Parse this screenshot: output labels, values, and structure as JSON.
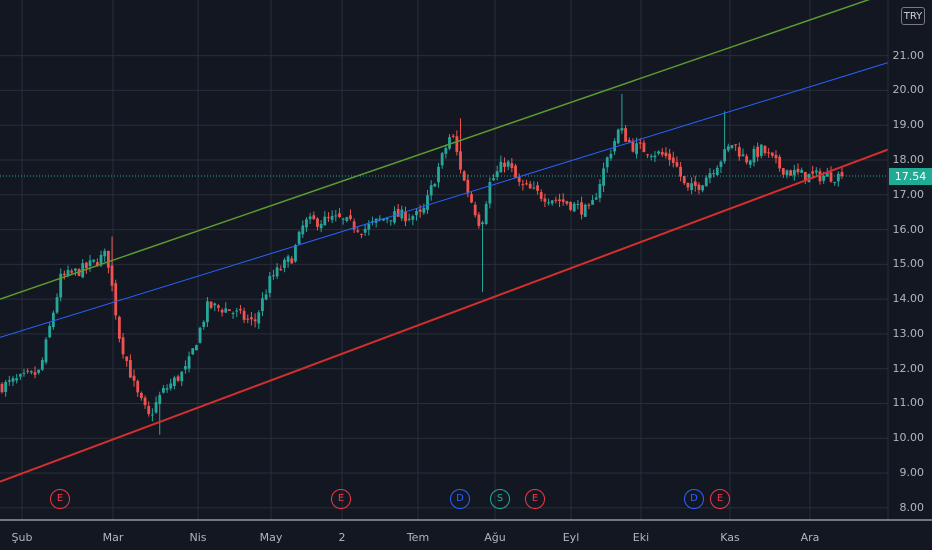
{
  "currency_badge": "TRY",
  "last_price_label": "17.54",
  "colors": {
    "background": "#131722",
    "grid": "#2a2e39",
    "up": "#26a69a",
    "down": "#ef5350",
    "channel_upper": "#5b9a2f",
    "channel_mid": "#2962ff",
    "channel_lower": "#d32f2f",
    "last_price": "#22ab94"
  },
  "events": [
    {
      "letter": "E",
      "kind": "earnings",
      "color": "#f23645",
      "date": "Şub"
    },
    {
      "letter": "E",
      "kind": "earnings",
      "color": "#f23645",
      "date": "May"
    },
    {
      "letter": "D",
      "kind": "dividend",
      "color": "#2962ff",
      "date": "Tem"
    },
    {
      "letter": "S",
      "kind": "split",
      "color": "#22ab94",
      "date": "Ağu"
    },
    {
      "letter": "E",
      "kind": "earnings",
      "color": "#f23645",
      "date": "Ağu"
    },
    {
      "letter": "D",
      "kind": "dividend",
      "color": "#2962ff",
      "date": "Eki"
    },
    {
      "letter": "E",
      "kind": "earnings",
      "color": "#f23645",
      "date": "Eki"
    }
  ],
  "chart_data": {
    "type": "candlestick",
    "y_axis_labels": [
      "8.00",
      "9.00",
      "10.00",
      "11.00",
      "12.00",
      "13.00",
      "14.00",
      "15.00",
      "16.00",
      "17.00",
      "18.00",
      "19.00",
      "20.00",
      "21.00"
    ],
    "ylim": [
      7.65,
      22.6
    ],
    "x_axis_labels": [
      "Şub",
      "Mar",
      "Nis",
      "May",
      "2",
      "Tem",
      "Ağu",
      "Eyl",
      "Eki",
      "Kas",
      "Ara"
    ],
    "last_price": 17.54,
    "grid": true,
    "channel": {
      "upper": {
        "start_price": 14.0,
        "end_price": 22.8
      },
      "middle": {
        "start_price": 12.9,
        "end_price": 20.8
      },
      "lower": {
        "start_price": 8.75,
        "end_price": 18.3
      }
    },
    "close_anchors": [
      [
        0,
        11.5
      ],
      [
        0.045,
        11.9
      ],
      [
        0.07,
        14.6
      ],
      [
        0.1,
        14.9
      ],
      [
        0.125,
        15.3
      ],
      [
        0.14,
        12.9
      ],
      [
        0.16,
        11.3
      ],
      [
        0.175,
        10.6
      ],
      [
        0.19,
        11.3
      ],
      [
        0.22,
        12.0
      ],
      [
        0.245,
        13.8
      ],
      [
        0.27,
        13.7
      ],
      [
        0.3,
        13.3
      ],
      [
        0.32,
        14.6
      ],
      [
        0.345,
        15.2
      ],
      [
        0.36,
        16.2
      ],
      [
        0.4,
        16.3
      ],
      [
        0.43,
        16.0
      ],
      [
        0.46,
        16.4
      ],
      [
        0.5,
        16.4
      ],
      [
        0.52,
        17.8
      ],
      [
        0.535,
        18.8
      ],
      [
        0.55,
        17.4
      ],
      [
        0.57,
        16.1
      ],
      [
        0.58,
        17.3
      ],
      [
        0.6,
        18.0
      ],
      [
        0.615,
        17.3
      ],
      [
        0.64,
        17.0
      ],
      [
        0.67,
        16.8
      ],
      [
        0.7,
        16.5
      ],
      [
        0.72,
        18.0
      ],
      [
        0.735,
        18.9
      ],
      [
        0.75,
        18.4
      ],
      [
        0.78,
        18.2
      ],
      [
        0.8,
        18.0
      ],
      [
        0.815,
        17.1
      ],
      [
        0.83,
        17.3
      ],
      [
        0.855,
        18.0
      ],
      [
        0.87,
        18.5
      ],
      [
        0.885,
        18.0
      ],
      [
        0.905,
        18.3
      ],
      [
        0.925,
        17.8
      ],
      [
        0.945,
        17.6
      ],
      [
        0.96,
        17.54
      ]
    ],
    "notable_extremes": [
      {
        "at": 0.131,
        "high": 15.8
      },
      {
        "at": 0.188,
        "low": 10.1
      },
      {
        "at": 0.547,
        "high": 19.2
      },
      {
        "at": 0.572,
        "low": 14.2
      },
      {
        "at": 0.737,
        "high": 19.9
      },
      {
        "at": 0.86,
        "high": 19.4
      }
    ]
  }
}
